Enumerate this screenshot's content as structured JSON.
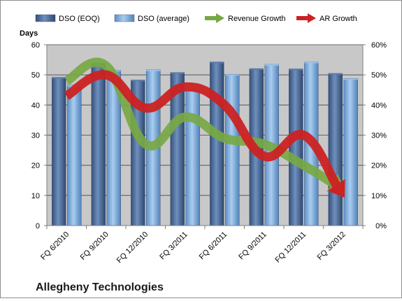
{
  "chart_data": {
    "type": "bar",
    "title": "Allegheny Technologies",
    "ylabel": "Days",
    "y2label": "",
    "categories": [
      "FQ 6/2010",
      "FQ 9/2010",
      "FQ 12/2010",
      "FQ 3/2011",
      "FQ 6/2011",
      "FQ 9/2011",
      "FQ 12/2011",
      "FQ 3/2012"
    ],
    "ylim": [
      0,
      60
    ],
    "y2lim": [
      0,
      0.6
    ],
    "yticks": [
      "0",
      "10",
      "20",
      "30",
      "40",
      "50",
      "60"
    ],
    "y2ticks": [
      "0%",
      "10%",
      "20%",
      "30%",
      "40%",
      "50%",
      "60%"
    ],
    "legend_position": "top",
    "grid": true,
    "series": [
      {
        "name": "DSO (EOQ)",
        "type": "bar",
        "axis": "left",
        "color": "#4a6a9a",
        "values": [
          49.2,
          54.0,
          48.3,
          50.8,
          54.3,
          52.1,
          52.0,
          50.5
        ]
      },
      {
        "name": "DSO (average)",
        "type": "bar",
        "axis": "left",
        "color": "#7aaad8",
        "values": [
          46.7,
          51.6,
          51.7,
          45.2,
          50.2,
          53.5,
          54.3,
          48.8
        ]
      },
      {
        "name": "Revenue Growth",
        "type": "arrow-line",
        "axis": "right",
        "color": "#77a844",
        "values": [
          0.48,
          0.53,
          0.27,
          0.36,
          0.29,
          0.27,
          0.2,
          0.12
        ]
      },
      {
        "name": "AR Growth",
        "type": "arrow-line",
        "axis": "right",
        "color": "#cc2222",
        "values": [
          0.43,
          0.5,
          0.39,
          0.46,
          0.4,
          0.23,
          0.3,
          0.1
        ]
      }
    ]
  },
  "colors": {
    "plot_background": "#c8c8c8",
    "gridline": "#444444"
  }
}
